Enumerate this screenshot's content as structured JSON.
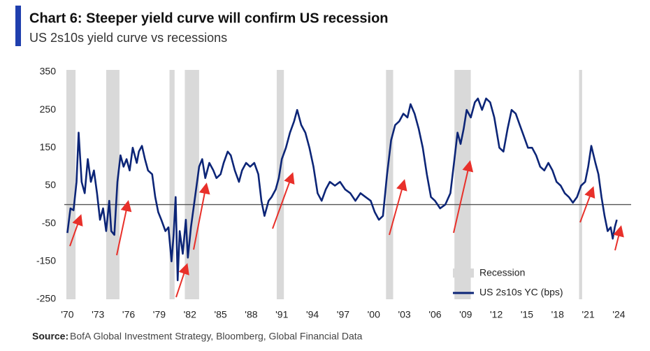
{
  "chart_data": {
    "type": "line",
    "title": "Chart 6: Steeper yield curve will confirm US recession",
    "subtitle": "US 2s10s yield curve vs recessions",
    "source_label": "Source:",
    "source_text": "BofA Global Investment Strategy, Bloomberg, Global Financial Data",
    "recession_label": "Recession",
    "recession_color": "#d9d9d9",
    "recessions": [
      [
        1969.9,
        1970.8
      ],
      [
        1973.8,
        1975.1
      ],
      [
        1980.0,
        1980.5
      ],
      [
        1981.5,
        1982.9
      ],
      [
        1990.5,
        1991.2
      ],
      [
        2001.2,
        2001.9
      ],
      [
        2007.9,
        2009.5
      ],
      [
        2020.1,
        2020.4
      ]
    ],
    "x": [
      1970.0,
      1970.3,
      1970.6,
      1970.9,
      1971.1,
      1971.4,
      1971.7,
      1972.0,
      1972.3,
      1972.6,
      1972.9,
      1973.2,
      1973.5,
      1973.8,
      1974.1,
      1974.3,
      1974.6,
      1974.9,
      1975.2,
      1975.5,
      1975.8,
      1976.1,
      1976.4,
      1976.8,
      1977.0,
      1977.3,
      1977.6,
      1977.9,
      1978.3,
      1978.6,
      1978.9,
      1979.2,
      1979.6,
      1979.9,
      1980.2,
      1980.4,
      1980.6,
      1980.8,
      1981.0,
      1981.3,
      1981.6,
      1981.8,
      1982.1,
      1982.4,
      1982.7,
      1982.9,
      1983.2,
      1983.5,
      1983.9,
      1984.3,
      1984.6,
      1985.0,
      1985.3,
      1985.7,
      1986.0,
      1986.4,
      1986.8,
      1987.1,
      1987.5,
      1987.9,
      1988.3,
      1988.7,
      1989.0,
      1989.3,
      1989.7,
      1990.0,
      1990.4,
      1990.7,
      1991.0,
      1991.4,
      1991.8,
      1992.2,
      1992.5,
      1992.9,
      1993.3,
      1993.7,
      1994.1,
      1994.5,
      1994.9,
      1995.3,
      1995.7,
      1996.2,
      1996.7,
      1997.2,
      1997.7,
      1998.2,
      1998.7,
      1999.2,
      1999.7,
      2000.1,
      2000.5,
      2000.9,
      2001.3,
      2001.7,
      2002.1,
      2002.5,
      2002.9,
      2003.3,
      2003.6,
      2004.0,
      2004.4,
      2004.8,
      2005.2,
      2005.6,
      2006.0,
      2006.5,
      2007.0,
      2007.5,
      2007.9,
      2008.2,
      2008.5,
      2008.8,
      2009.1,
      2009.5,
      2009.9,
      2010.2,
      2010.6,
      2011.0,
      2011.4,
      2011.8,
      2012.3,
      2012.7,
      2013.1,
      2013.5,
      2013.9,
      2014.3,
      2014.7,
      2015.1,
      2015.5,
      2015.9,
      2016.3,
      2016.7,
      2017.1,
      2017.5,
      2017.9,
      2018.3,
      2018.7,
      2019.1,
      2019.5,
      2019.9,
      2020.3,
      2020.7,
      2021.0,
      2021.3,
      2021.7,
      2022.0,
      2022.3,
      2022.6,
      2022.9,
      2023.2,
      2023.4,
      2023.6,
      2023.8
    ],
    "series": [
      {
        "name": "US 2s10s YC (bps)",
        "color": "#0c2577",
        "values": [
          -75,
          -10,
          -15,
          60,
          190,
          60,
          30,
          120,
          60,
          90,
          30,
          -40,
          -10,
          -70,
          10,
          -70,
          -80,
          60,
          130,
          100,
          120,
          90,
          150,
          110,
          140,
          155,
          120,
          90,
          80,
          20,
          -20,
          -40,
          -70,
          -60,
          -150,
          -80,
          20,
          -200,
          -70,
          -130,
          -40,
          -140,
          -60,
          0,
          60,
          100,
          120,
          70,
          110,
          90,
          70,
          80,
          110,
          140,
          130,
          90,
          60,
          90,
          110,
          100,
          110,
          80,
          10,
          -30,
          10,
          20,
          40,
          70,
          120,
          150,
          190,
          220,
          250,
          210,
          190,
          150,
          100,
          30,
          10,
          40,
          60,
          50,
          60,
          40,
          30,
          10,
          30,
          20,
          10,
          -20,
          -40,
          -30,
          80,
          170,
          210,
          220,
          240,
          230,
          265,
          240,
          200,
          150,
          80,
          20,
          10,
          -10,
          0,
          30,
          120,
          190,
          160,
          200,
          250,
          230,
          270,
          280,
          250,
          280,
          270,
          230,
          150,
          140,
          200,
          250,
          240,
          210,
          180,
          150,
          150,
          130,
          100,
          90,
          110,
          90,
          60,
          50,
          30,
          20,
          5,
          20,
          50,
          60,
          100,
          155,
          110,
          80,
          20,
          -30,
          -70,
          -60,
          -90,
          -60,
          -40
        ]
      }
    ],
    "xlim": [
      1969.7,
      2025.2
    ],
    "xticks": [
      {
        "value": 1970,
        "label": "'70"
      },
      {
        "value": 1973,
        "label": "'73"
      },
      {
        "value": 1976,
        "label": "'76"
      },
      {
        "value": 1979,
        "label": "'79"
      },
      {
        "value": 1982,
        "label": "'82"
      },
      {
        "value": 1985,
        "label": "'85"
      },
      {
        "value": 1988,
        "label": "'88"
      },
      {
        "value": 1991,
        "label": "'91"
      },
      {
        "value": 1994,
        "label": "'94"
      },
      {
        "value": 1997,
        "label": "'97"
      },
      {
        "value": 2000,
        "label": "'00"
      },
      {
        "value": 2003,
        "label": "'03"
      },
      {
        "value": 2006,
        "label": "'06"
      },
      {
        "value": 2009,
        "label": "'09"
      },
      {
        "value": 2012,
        "label": "'12"
      },
      {
        "value": 2015,
        "label": "'15"
      },
      {
        "value": 2018,
        "label": "'18"
      },
      {
        "value": 2021,
        "label": "'21"
      },
      {
        "value": 2024,
        "label": "'24"
      }
    ],
    "ylim": [
      -250,
      350
    ],
    "yticks": [
      350,
      250,
      150,
      50,
      -50,
      -150,
      -250
    ]
  }
}
